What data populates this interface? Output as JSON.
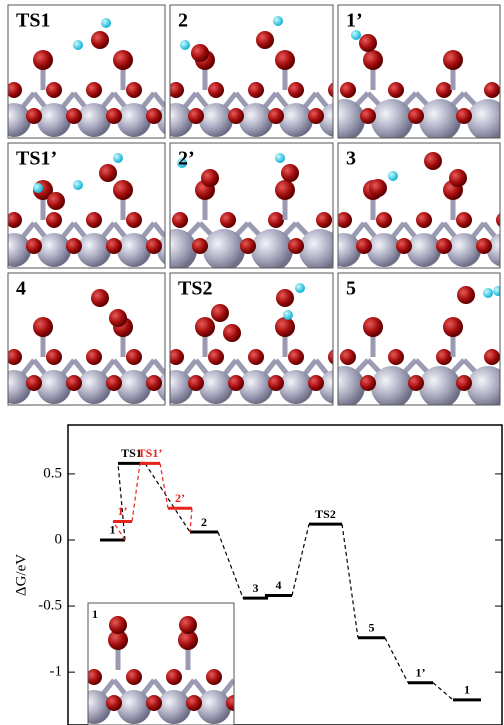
{
  "panels": [
    {
      "label": "TS1"
    },
    {
      "label": "2"
    },
    {
      "label": "1’"
    },
    {
      "label": "TS1’"
    },
    {
      "label": "2’"
    },
    {
      "label": "3"
    },
    {
      "label": "4"
    },
    {
      "label": "TS2"
    },
    {
      "label": "5"
    }
  ],
  "inset": {
    "label": "1"
  },
  "chart_data": {
    "type": "energy-levels",
    "y_label": "ΔG/eV",
    "ylim": [
      -1.4,
      0.87
    ],
    "yticks": [
      0.5,
      0,
      -0.5,
      -1
    ],
    "series": [
      {
        "color": "#000000",
        "labels": [
          "1",
          "TS1",
          "2",
          "3",
          "4",
          "TS2",
          "5",
          "1’",
          "1"
        ],
        "values": [
          0,
          0.58,
          0.06,
          -0.44,
          -0.42,
          0.12,
          -0.74,
          -1.08,
          -1.21
        ]
      },
      {
        "color": "#e8231c",
        "labels": [
          "1’",
          "TS1’",
          "2’"
        ],
        "values": [
          0.14,
          0.58,
          0.24
        ]
      }
    ]
  }
}
